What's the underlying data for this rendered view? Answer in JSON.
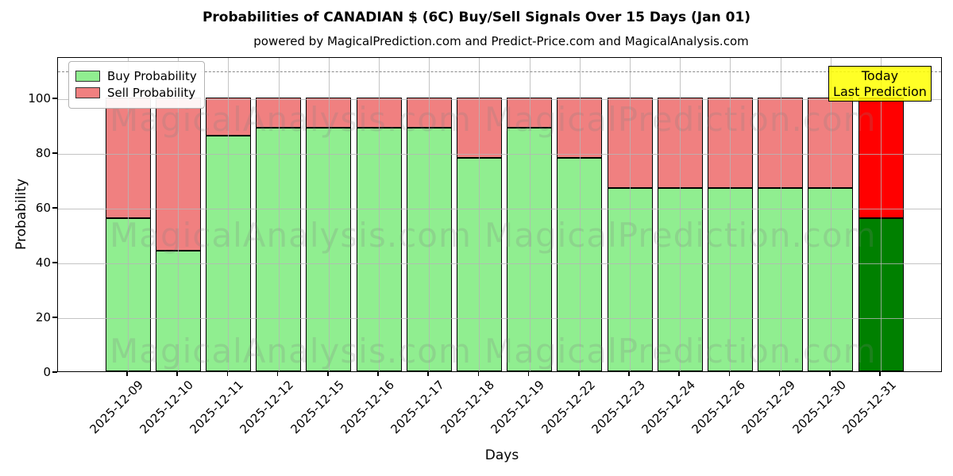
{
  "title": "Probabilities of CANADIAN $ (6C) Buy/Sell Signals Over 15 Days (Jan 01)",
  "subtitle": "powered by MagicalPrediction.com and Predict-Price.com and MagicalAnalysis.com",
  "axes": {
    "xlabel": "Days",
    "ylabel": "Probability",
    "yticks": [
      0,
      20,
      40,
      60,
      80,
      100
    ],
    "ylim": [
      0,
      115
    ],
    "dashed_threshold": 110,
    "grid": true
  },
  "legend": {
    "position": "upper-left",
    "items": [
      {
        "label": "Buy Probability",
        "color": "#90EE90"
      },
      {
        "label": "Sell Probability",
        "color": "#F08080"
      }
    ]
  },
  "annotation": {
    "line1": "Today",
    "line2": "Last Prediction",
    "bg": "#FFFF00"
  },
  "watermarks": {
    "left_text": "MagicalAnalysis.com",
    "right_text": "MagicalPrediction.com",
    "color": "rgba(128,128,128,0.22)"
  },
  "colors": {
    "buy": "#90EE90",
    "sell": "#F08080",
    "today_buy": "#008000",
    "today_sell": "#FF0000",
    "grid": "#b5b5b5"
  },
  "chart_data": {
    "type": "bar",
    "stacked": true,
    "categories": [
      "2025-12-09",
      "2025-12-10",
      "2025-12-11",
      "2025-12-12",
      "2025-12-15",
      "2025-12-16",
      "2025-12-17",
      "2025-12-18",
      "2025-12-19",
      "2025-12-22",
      "2025-12-23",
      "2025-12-24",
      "2025-12-26",
      "2025-12-29",
      "2025-12-30",
      "2025-12-31"
    ],
    "series": [
      {
        "name": "Buy Probability",
        "values": [
          56,
          44,
          86,
          89,
          89,
          89,
          89,
          78,
          89,
          78,
          67,
          67,
          67,
          67,
          67,
          56
        ]
      },
      {
        "name": "Sell Probability",
        "values": [
          44,
          56,
          14,
          11,
          11,
          11,
          11,
          22,
          11,
          22,
          33,
          33,
          33,
          33,
          33,
          44
        ]
      }
    ],
    "today_index": 15,
    "title": "Probabilities of CANADIAN $ (6C) Buy/Sell Signals Over 15 Days (Jan 01)",
    "xlabel": "Days",
    "ylabel": "Probability",
    "ylim": [
      0,
      115
    ]
  }
}
